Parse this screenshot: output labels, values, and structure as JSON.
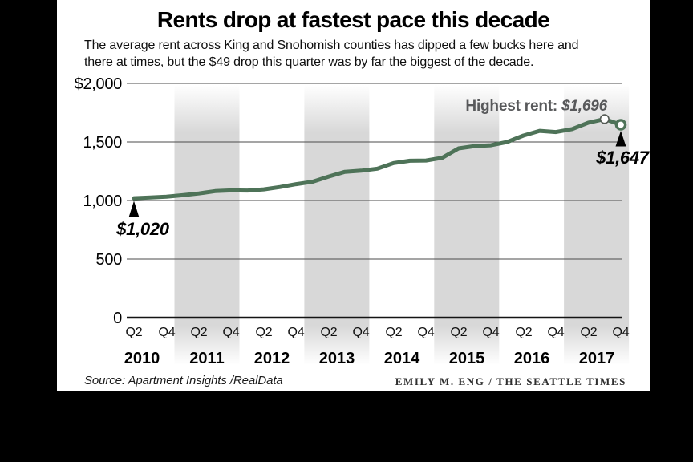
{
  "frame": {
    "background_color": "#000000",
    "panel_background_color": "#ffffff"
  },
  "chart": {
    "title": "Rents drop at fastest pace this decade",
    "subtitle_lines": [
      "The average rent across King and Snohomish counties has dipped a few bucks here and",
      "there at times, but the $49 drop this quarter was by far the biggest of the decade."
    ],
    "y_tick_labels": [
      "$2,000",
      "1,500",
      "1,000",
      "500",
      "0"
    ],
    "quarter_tick_labels": [
      "Q2",
      "Q4",
      "Q2",
      "Q4",
      "Q2",
      "Q4",
      "Q2",
      "Q4",
      "Q2",
      "Q4",
      "Q2",
      "Q4",
      "Q2",
      "Q4",
      "Q2",
      "Q4"
    ],
    "year_labels": [
      "2010",
      "2011",
      "2012",
      "2013",
      "2014",
      "2015",
      "2016",
      "2017"
    ],
    "annotations": {
      "start_value_label": "$1,020",
      "highest_rent_prefix": "Highest rent: ",
      "highest_rent_value": "$1,696",
      "end_value_label": "$1,647"
    },
    "colors": {
      "line": "#4e7358",
      "year_band": "#d8d8d8",
      "grid": "#4b4b4b",
      "annotation_gray": "#58595b"
    }
  },
  "chart_data": {
    "type": "line",
    "title": "Rents drop at fastest pace this decade",
    "x": [
      "2010 Q2",
      "2010 Q3",
      "2010 Q4",
      "2011 Q1",
      "2011 Q2",
      "2011 Q3",
      "2011 Q4",
      "2012 Q1",
      "2012 Q2",
      "2012 Q3",
      "2012 Q4",
      "2013 Q1",
      "2013 Q2",
      "2013 Q3",
      "2013 Q4",
      "2014 Q1",
      "2014 Q2",
      "2014 Q3",
      "2014 Q4",
      "2015 Q1",
      "2015 Q2",
      "2015 Q3",
      "2015 Q4",
      "2016 Q1",
      "2016 Q2",
      "2016 Q3",
      "2016 Q4",
      "2017 Q1",
      "2017 Q2",
      "2017 Q3",
      "2017 Q4"
    ],
    "values": [
      1020,
      1026,
      1033,
      1045,
      1060,
      1080,
      1086,
      1085,
      1095,
      1115,
      1140,
      1160,
      1205,
      1245,
      1255,
      1272,
      1320,
      1340,
      1342,
      1365,
      1445,
      1465,
      1472,
      1500,
      1555,
      1595,
      1585,
      1610,
      1665,
      1696,
      1647
    ],
    "ylim": [
      0,
      2000
    ],
    "y_tick_values": [
      0,
      500,
      1000,
      1500,
      2000
    ],
    "grid": "horizontal",
    "shaded_year_bands": [
      2011,
      2013,
      2015,
      2017
    ],
    "legend": "none",
    "highlights": {
      "start": {
        "x": "2010 Q2",
        "value": 1020
      },
      "peak": {
        "x": "2017 Q3",
        "value": 1696
      },
      "end": {
        "x": "2017 Q4",
        "value": 1647
      }
    }
  },
  "footer": {
    "source": "Source: Apartment Insights /RealData",
    "credit": "EMILY M. ENG / THE SEATTLE TIMES"
  }
}
